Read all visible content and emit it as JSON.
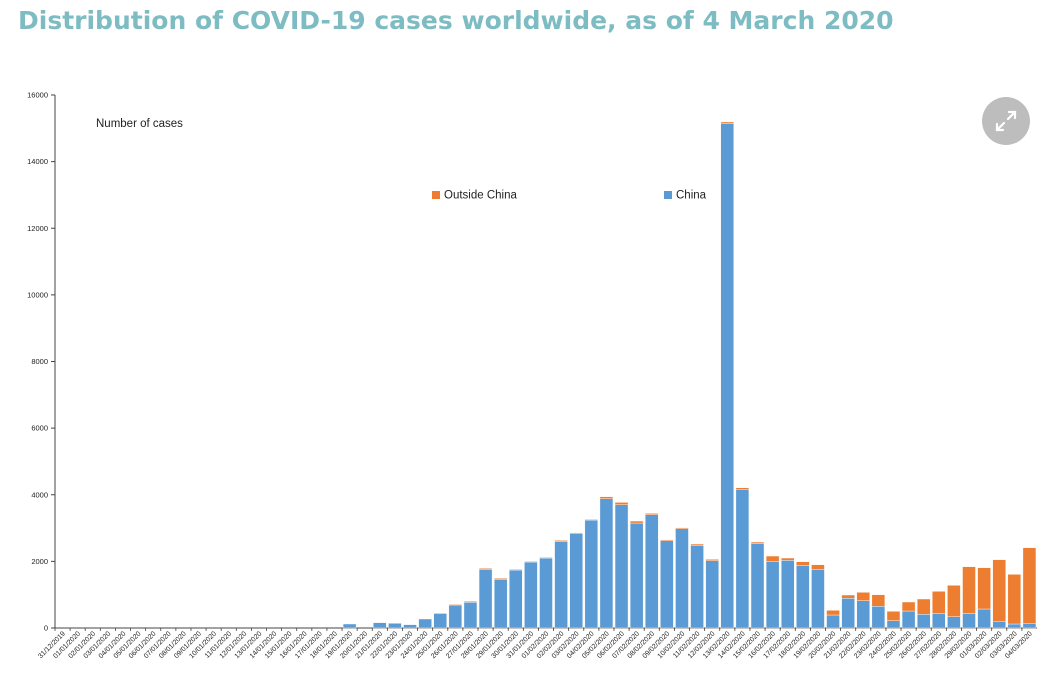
{
  "page": {
    "title": "Distribution of COVID-19 cases worldwide, as of 4 March 2020",
    "expand_icon": "expand-arrows-icon"
  },
  "chart_data": {
    "type": "bar",
    "stacked": true,
    "ylabel": "Number of cases",
    "xlabel": "",
    "ylim": [
      0,
      16000
    ],
    "yticks": [
      0,
      2000,
      4000,
      6000,
      8000,
      10000,
      12000,
      14000,
      16000
    ],
    "grid": false,
    "legend_placement": "top-center",
    "categories": [
      "31/12/2019",
      "01/01/2020",
      "02/01/2020",
      "03/01/2020",
      "04/01/2020",
      "05/01/2020",
      "06/01/2020",
      "07/01/2020",
      "08/01/2020",
      "09/01/2020",
      "10/01/2020",
      "11/01/2020",
      "12/01/2020",
      "13/01/2020",
      "14/01/2020",
      "15/01/2020",
      "16/01/2020",
      "17/01/2020",
      "18/01/2020",
      "19/01/2020",
      "20/01/2020",
      "21/01/2020",
      "22/01/2020",
      "23/01/2020",
      "24/01/2020",
      "25/01/2020",
      "26/01/2020",
      "27/01/2020",
      "28/01/2020",
      "29/01/2020",
      "30/01/2020",
      "31/01/2020",
      "01/02/2020",
      "02/02/2020",
      "03/02/2020",
      "04/02/2020",
      "05/02/2020",
      "06/02/2020",
      "07/02/2020",
      "08/02/2020",
      "09/02/2020",
      "10/02/2020",
      "11/02/2020",
      "12/02/2020",
      "13/02/2020",
      "14/02/2020",
      "15/02/2020",
      "16/02/2020",
      "17/02/2020",
      "18/02/2020",
      "19/02/2020",
      "20/02/2020",
      "21/02/2020",
      "22/02/2020",
      "23/02/2020",
      "24/02/2020",
      "25/02/2020",
      "26/02/2020",
      "27/02/2020",
      "28/02/2020",
      "29/02/2020",
      "01/03/2020",
      "02/03/2020",
      "03/03/2020",
      "04/03/2020"
    ],
    "series": [
      {
        "name": "China",
        "color": "#5b9bd5",
        "values": [
          0,
          0,
          0,
          0,
          0,
          0,
          0,
          0,
          0,
          0,
          0,
          0,
          0,
          0,
          0,
          0,
          0,
          0,
          0,
          120,
          0,
          160,
          140,
          100,
          270,
          440,
          690,
          770,
          1760,
          1460,
          1740,
          1980,
          2100,
          2600,
          2830,
          3240,
          3880,
          3700,
          3150,
          3400,
          2620,
          2980,
          2480,
          2020,
          15140,
          4150,
          2540,
          2000,
          2030,
          1880,
          1750,
          390,
          890,
          820,
          650,
          220,
          510,
          410,
          430,
          340,
          430,
          570,
          200,
          120,
          140
        ]
      },
      {
        "name": "Outside China",
        "color": "#ed7d31",
        "values": [
          0,
          0,
          0,
          0,
          0,
          0,
          0,
          0,
          0,
          0,
          0,
          0,
          0,
          0,
          0,
          0,
          0,
          0,
          0,
          0,
          0,
          0,
          0,
          0,
          0,
          10,
          20,
          30,
          30,
          30,
          20,
          20,
          20,
          30,
          30,
          20,
          60,
          70,
          60,
          40,
          30,
          30,
          40,
          40,
          50,
          60,
          40,
          160,
          70,
          110,
          150,
          140,
          100,
          250,
          350,
          280,
          270,
          460,
          670,
          940,
          1410,
          1240,
          1850,
          1490,
          2270
        ]
      }
    ]
  }
}
